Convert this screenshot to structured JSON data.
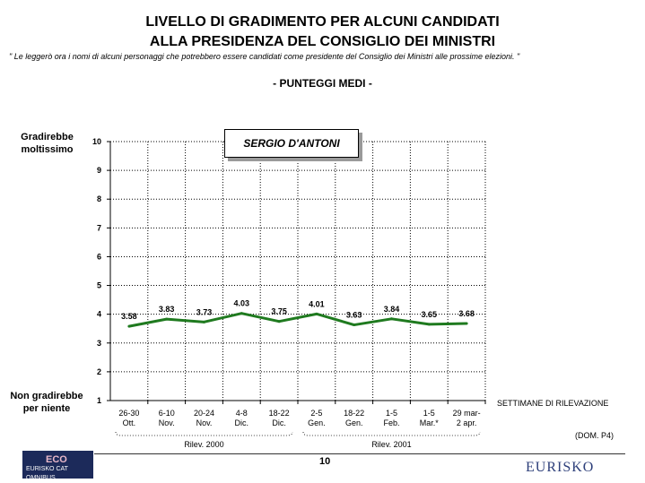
{
  "header": {
    "title_line1": "LIVELLO DI GRADIMENTO PER ALCUNI CANDIDATI",
    "title_line2": "ALLA PRESIDENZA DEL CONSIGLIO DEI MINISTRI",
    "question_note": "\" Le leggerò ora i nomi di alcuni personaggi che potrebbero essere candidati come presidente del Consiglio dei Ministri alle prossime elezioni. \"",
    "subtitle": "- PUNTEGGI MEDI -"
  },
  "chart_data": {
    "type": "line",
    "series_label": "SERGIO D'ANTONI",
    "categories": [
      [
        "26-30",
        "Ott."
      ],
      [
        "6-10",
        "Nov."
      ],
      [
        "20-24",
        "Nov."
      ],
      [
        "4-8",
        "Dic."
      ],
      [
        "18-22",
        "Dic."
      ],
      [
        "2-5",
        "Gen."
      ],
      [
        "18-22",
        "Gen."
      ],
      [
        "1-5",
        "Feb."
      ],
      [
        "1-5",
        "Mar.*"
      ],
      [
        "29 mar-",
        "2 apr."
      ]
    ],
    "series": [
      {
        "name": "SERGIO D'ANTONI",
        "values": [
          3.58,
          3.83,
          3.73,
          4.03,
          3.75,
          4.01,
          3.63,
          3.84,
          3.65,
          3.68
        ]
      }
    ],
    "data_labels": [
      "3.58",
      "3.83",
      "3.73",
      "4.03",
      "3.75",
      "4.01",
      "3.63",
      "3.84",
      "3.65",
      "3.68"
    ],
    "yticks": [
      "1",
      "2",
      "3",
      "4",
      "5",
      "6",
      "7",
      "8",
      "9",
      "10"
    ],
    "ylim": [
      1,
      10
    ],
    "ylabel_top": "Gradirebbe moltissimo",
    "ylabel_top_line1": "Gradirebbe",
    "ylabel_top_line2": "moltissimo",
    "ylabel_bottom_line1": "Non gradirebbe",
    "ylabel_bottom_line2": "per niente",
    "xlabel": "SETTIMANE DI RILEVAZIONE",
    "groups": [
      "Rilev. 2000",
      "Rilev. 2001"
    ],
    "grid": true,
    "line_color": "#1f7a1f"
  },
  "footer": {
    "source_code": "(DOM. P4)",
    "page_number": "10",
    "logo_left": "ECO EURISKO CAT OMNIBUS",
    "logo_right": "EURISKO"
  }
}
